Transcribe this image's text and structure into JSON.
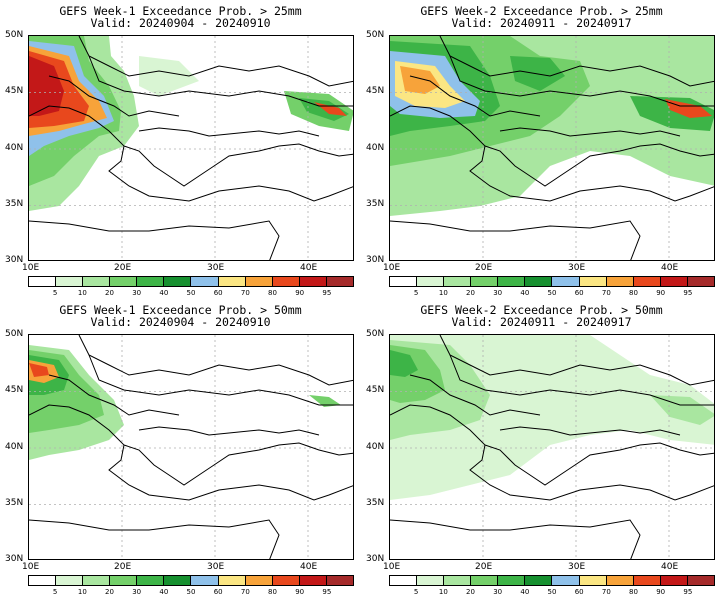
{
  "panels": [
    {
      "title": "GEFS Week-1 Exceedance Prob. > 25mm",
      "valid": "Valid: 20240904 - 20240910"
    },
    {
      "title": "GEFS Week-2 Exceedance Prob. > 25mm",
      "valid": "Valid: 20240911 - 20240917"
    },
    {
      "title": "GEFS Week-1 Exceedance Prob. > 50mm",
      "valid": "Valid: 20240904 - 20240910"
    },
    {
      "title": "GEFS Week-2 Exceedance Prob. > 50mm",
      "valid": "Valid: 20240911 - 20240917"
    }
  ],
  "axes": {
    "lat_labels": [
      "50N",
      "45N",
      "40N",
      "35N",
      "30N"
    ],
    "lon_labels": [
      "10E",
      "20E",
      "30E",
      "40E"
    ]
  },
  "colorbar": {
    "labels": [
      "5",
      "10",
      "20",
      "30",
      "40",
      "50",
      "60",
      "70",
      "80",
      "90",
      "95"
    ],
    "colors": [
      "#ffffff",
      "#d9f5d3",
      "#a9e6a0",
      "#74d06a",
      "#3db447",
      "#16902f",
      "#8fc1ea",
      "#fbe683",
      "#f7a33a",
      "#e8481d",
      "#c31818",
      "#a52a2a"
    ]
  }
}
